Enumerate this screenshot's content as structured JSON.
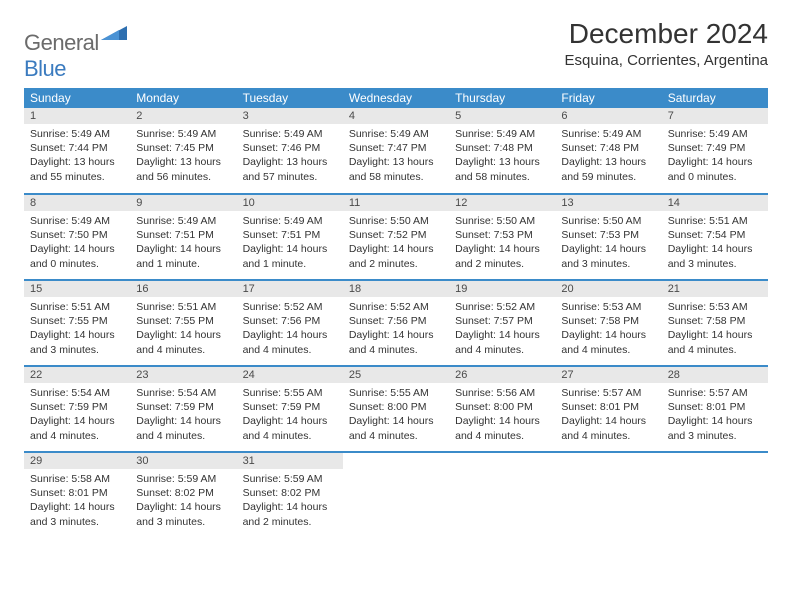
{
  "logo": {
    "general": "General",
    "blue": "Blue"
  },
  "title": "December 2024",
  "location": "Esquina, Corrientes, Argentina",
  "colors": {
    "header_bg": "#3b8bc9",
    "header_text": "#ffffff",
    "daynum_bg": "#e8e8e8",
    "row_border": "#3b8bc9",
    "logo_gray": "#6b6b6b",
    "logo_blue": "#3b7bbf"
  },
  "weekdays": [
    "Sunday",
    "Monday",
    "Tuesday",
    "Wednesday",
    "Thursday",
    "Friday",
    "Saturday"
  ],
  "days": [
    {
      "n": "1",
      "sr": "5:49 AM",
      "ss": "7:44 PM",
      "dl": "13 hours and 55 minutes."
    },
    {
      "n": "2",
      "sr": "5:49 AM",
      "ss": "7:45 PM",
      "dl": "13 hours and 56 minutes."
    },
    {
      "n": "3",
      "sr": "5:49 AM",
      "ss": "7:46 PM",
      "dl": "13 hours and 57 minutes."
    },
    {
      "n": "4",
      "sr": "5:49 AM",
      "ss": "7:47 PM",
      "dl": "13 hours and 58 minutes."
    },
    {
      "n": "5",
      "sr": "5:49 AM",
      "ss": "7:48 PM",
      "dl": "13 hours and 58 minutes."
    },
    {
      "n": "6",
      "sr": "5:49 AM",
      "ss": "7:48 PM",
      "dl": "13 hours and 59 minutes."
    },
    {
      "n": "7",
      "sr": "5:49 AM",
      "ss": "7:49 PM",
      "dl": "14 hours and 0 minutes."
    },
    {
      "n": "8",
      "sr": "5:49 AM",
      "ss": "7:50 PM",
      "dl": "14 hours and 0 minutes."
    },
    {
      "n": "9",
      "sr": "5:49 AM",
      "ss": "7:51 PM",
      "dl": "14 hours and 1 minute."
    },
    {
      "n": "10",
      "sr": "5:49 AM",
      "ss": "7:51 PM",
      "dl": "14 hours and 1 minute."
    },
    {
      "n": "11",
      "sr": "5:50 AM",
      "ss": "7:52 PM",
      "dl": "14 hours and 2 minutes."
    },
    {
      "n": "12",
      "sr": "5:50 AM",
      "ss": "7:53 PM",
      "dl": "14 hours and 2 minutes."
    },
    {
      "n": "13",
      "sr": "5:50 AM",
      "ss": "7:53 PM",
      "dl": "14 hours and 3 minutes."
    },
    {
      "n": "14",
      "sr": "5:51 AM",
      "ss": "7:54 PM",
      "dl": "14 hours and 3 minutes."
    },
    {
      "n": "15",
      "sr": "5:51 AM",
      "ss": "7:55 PM",
      "dl": "14 hours and 3 minutes."
    },
    {
      "n": "16",
      "sr": "5:51 AM",
      "ss": "7:55 PM",
      "dl": "14 hours and 4 minutes."
    },
    {
      "n": "17",
      "sr": "5:52 AM",
      "ss": "7:56 PM",
      "dl": "14 hours and 4 minutes."
    },
    {
      "n": "18",
      "sr": "5:52 AM",
      "ss": "7:56 PM",
      "dl": "14 hours and 4 minutes."
    },
    {
      "n": "19",
      "sr": "5:52 AM",
      "ss": "7:57 PM",
      "dl": "14 hours and 4 minutes."
    },
    {
      "n": "20",
      "sr": "5:53 AM",
      "ss": "7:58 PM",
      "dl": "14 hours and 4 minutes."
    },
    {
      "n": "21",
      "sr": "5:53 AM",
      "ss": "7:58 PM",
      "dl": "14 hours and 4 minutes."
    },
    {
      "n": "22",
      "sr": "5:54 AM",
      "ss": "7:59 PM",
      "dl": "14 hours and 4 minutes."
    },
    {
      "n": "23",
      "sr": "5:54 AM",
      "ss": "7:59 PM",
      "dl": "14 hours and 4 minutes."
    },
    {
      "n": "24",
      "sr": "5:55 AM",
      "ss": "7:59 PM",
      "dl": "14 hours and 4 minutes."
    },
    {
      "n": "25",
      "sr": "5:55 AM",
      "ss": "8:00 PM",
      "dl": "14 hours and 4 minutes."
    },
    {
      "n": "26",
      "sr": "5:56 AM",
      "ss": "8:00 PM",
      "dl": "14 hours and 4 minutes."
    },
    {
      "n": "27",
      "sr": "5:57 AM",
      "ss": "8:01 PM",
      "dl": "14 hours and 4 minutes."
    },
    {
      "n": "28",
      "sr": "5:57 AM",
      "ss": "8:01 PM",
      "dl": "14 hours and 3 minutes."
    },
    {
      "n": "29",
      "sr": "5:58 AM",
      "ss": "8:01 PM",
      "dl": "14 hours and 3 minutes."
    },
    {
      "n": "30",
      "sr": "5:59 AM",
      "ss": "8:02 PM",
      "dl": "14 hours and 3 minutes."
    },
    {
      "n": "31",
      "sr": "5:59 AM",
      "ss": "8:02 PM",
      "dl": "14 hours and 2 minutes."
    }
  ],
  "labels": {
    "sunrise": "Sunrise:",
    "sunset": "Sunset:",
    "daylight": "Daylight:"
  }
}
